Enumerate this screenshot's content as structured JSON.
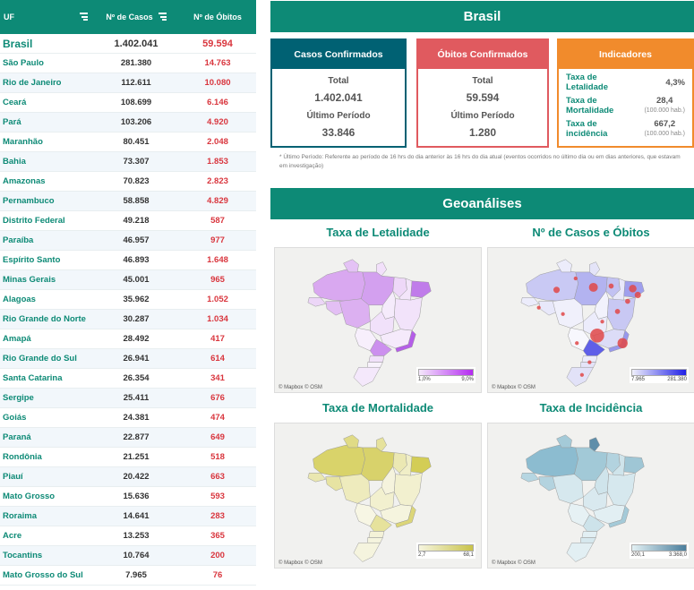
{
  "table": {
    "headers": {
      "uf": "UF",
      "casos": "Nº de Casos",
      "obitos": "Nº de Óbitos"
    },
    "total": {
      "name": "Brasil",
      "casos": "1.402.041",
      "obitos": "59.594"
    },
    "rows": [
      {
        "name": "São Paulo",
        "casos": "281.380",
        "obitos": "14.763"
      },
      {
        "name": "Rio de Janeiro",
        "casos": "112.611",
        "obitos": "10.080"
      },
      {
        "name": "Ceará",
        "casos": "108.699",
        "obitos": "6.146"
      },
      {
        "name": "Pará",
        "casos": "103.206",
        "obitos": "4.920"
      },
      {
        "name": "Maranhão",
        "casos": "80.451",
        "obitos": "2.048"
      },
      {
        "name": "Bahia",
        "casos": "73.307",
        "obitos": "1.853"
      },
      {
        "name": "Amazonas",
        "casos": "70.823",
        "obitos": "2.823"
      },
      {
        "name": "Pernambuco",
        "casos": "58.858",
        "obitos": "4.829"
      },
      {
        "name": "Distrito Federal",
        "casos": "49.218",
        "obitos": "587"
      },
      {
        "name": "Paraíba",
        "casos": "46.957",
        "obitos": "977"
      },
      {
        "name": "Espírito Santo",
        "casos": "46.893",
        "obitos": "1.648"
      },
      {
        "name": "Minas Gerais",
        "casos": "45.001",
        "obitos": "965"
      },
      {
        "name": "Alagoas",
        "casos": "35.962",
        "obitos": "1.052"
      },
      {
        "name": "Rio Grande do Norte",
        "casos": "30.287",
        "obitos": "1.034"
      },
      {
        "name": "Amapá",
        "casos": "28.492",
        "obitos": "417"
      },
      {
        "name": "Rio Grande do Sul",
        "casos": "26.941",
        "obitos": "614"
      },
      {
        "name": "Santa Catarina",
        "casos": "26.354",
        "obitos": "341"
      },
      {
        "name": "Sergipe",
        "casos": "25.411",
        "obitos": "676"
      },
      {
        "name": "Goiás",
        "casos": "24.381",
        "obitos": "474"
      },
      {
        "name": "Paraná",
        "casos": "22.877",
        "obitos": "649"
      },
      {
        "name": "Rondônia",
        "casos": "21.251",
        "obitos": "518"
      },
      {
        "name": "Piauí",
        "casos": "20.422",
        "obitos": "663"
      },
      {
        "name": "Mato Grosso",
        "casos": "15.636",
        "obitos": "593"
      },
      {
        "name": "Roraima",
        "casos": "14.641",
        "obitos": "283"
      },
      {
        "name": "Acre",
        "casos": "13.253",
        "obitos": "365"
      },
      {
        "name": "Tocantins",
        "casos": "10.764",
        "obitos": "200"
      },
      {
        "name": "Mato Grosso do Sul",
        "casos": "7.965",
        "obitos": "76"
      }
    ]
  },
  "brasil_title": "Brasil",
  "cards": {
    "confirmados": {
      "title": "Casos Confirmados",
      "total_label": "Total",
      "total": "1.402.041",
      "periodo_label": "Último Período",
      "periodo": "33.846",
      "color": "#006173"
    },
    "obitos": {
      "title": "Óbitos Confirmados",
      "total_label": "Total",
      "total": "59.594",
      "periodo_label": "Último Período",
      "periodo": "1.280",
      "color": "#e05a5f"
    },
    "indicadores": {
      "title": "Indicadores",
      "color": "#f18b2c",
      "letalidade_label": "Taxa de Letalidade",
      "letalidade": "4,3%",
      "mortalidade_label": "Taxa de Mortalidade",
      "mortalidade": "28,4",
      "mortalidade_unit": "(100.000 hab.)",
      "incidencia_label": "Taxa de incidência",
      "incidencia": "667,2",
      "incidencia_unit": "(100.000 hab.)"
    }
  },
  "footnote": "* Último Período: Referente ao período de 16 hrs do dia anterior às 16 hrs do dia atual (eventos ocorridos no último dia ou em dias anteriores, que estavam em investigação)",
  "geo_title": "Geoanálises",
  "maps": {
    "letalidade": {
      "title": "Taxa de Letalidade",
      "min": "1,0%",
      "max": "9,0%",
      "credits": "© Mapbox © OSM"
    },
    "casos": {
      "title": "Nº de Casos e Óbitos",
      "min": "7.965",
      "max": "281.380",
      "credits": "© Mapbox © OSM"
    },
    "mortalidade": {
      "title": "Taxa de Mortalidade",
      "min": "2,7",
      "max": "68,1",
      "credits": "© Mapbox © OSM"
    },
    "incidencia": {
      "title": "Taxa de Incidência",
      "min": "200,1",
      "max": "3.368,0",
      "credits": "© Mapbox © OSM"
    }
  }
}
